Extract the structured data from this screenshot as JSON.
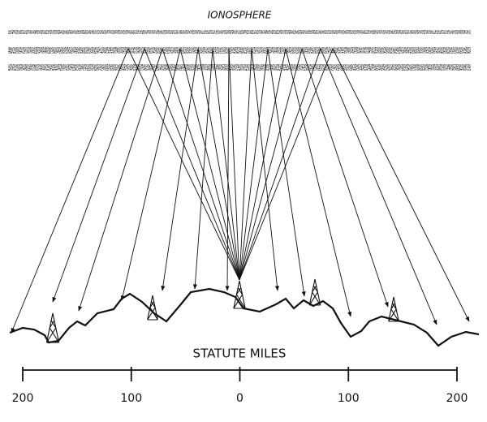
{
  "header": {
    "title": "IONOSPHERE"
  },
  "scale": {
    "title": "STATUTE MILES",
    "labels": [
      "200",
      "100",
      "0",
      "100",
      "200"
    ]
  }
}
